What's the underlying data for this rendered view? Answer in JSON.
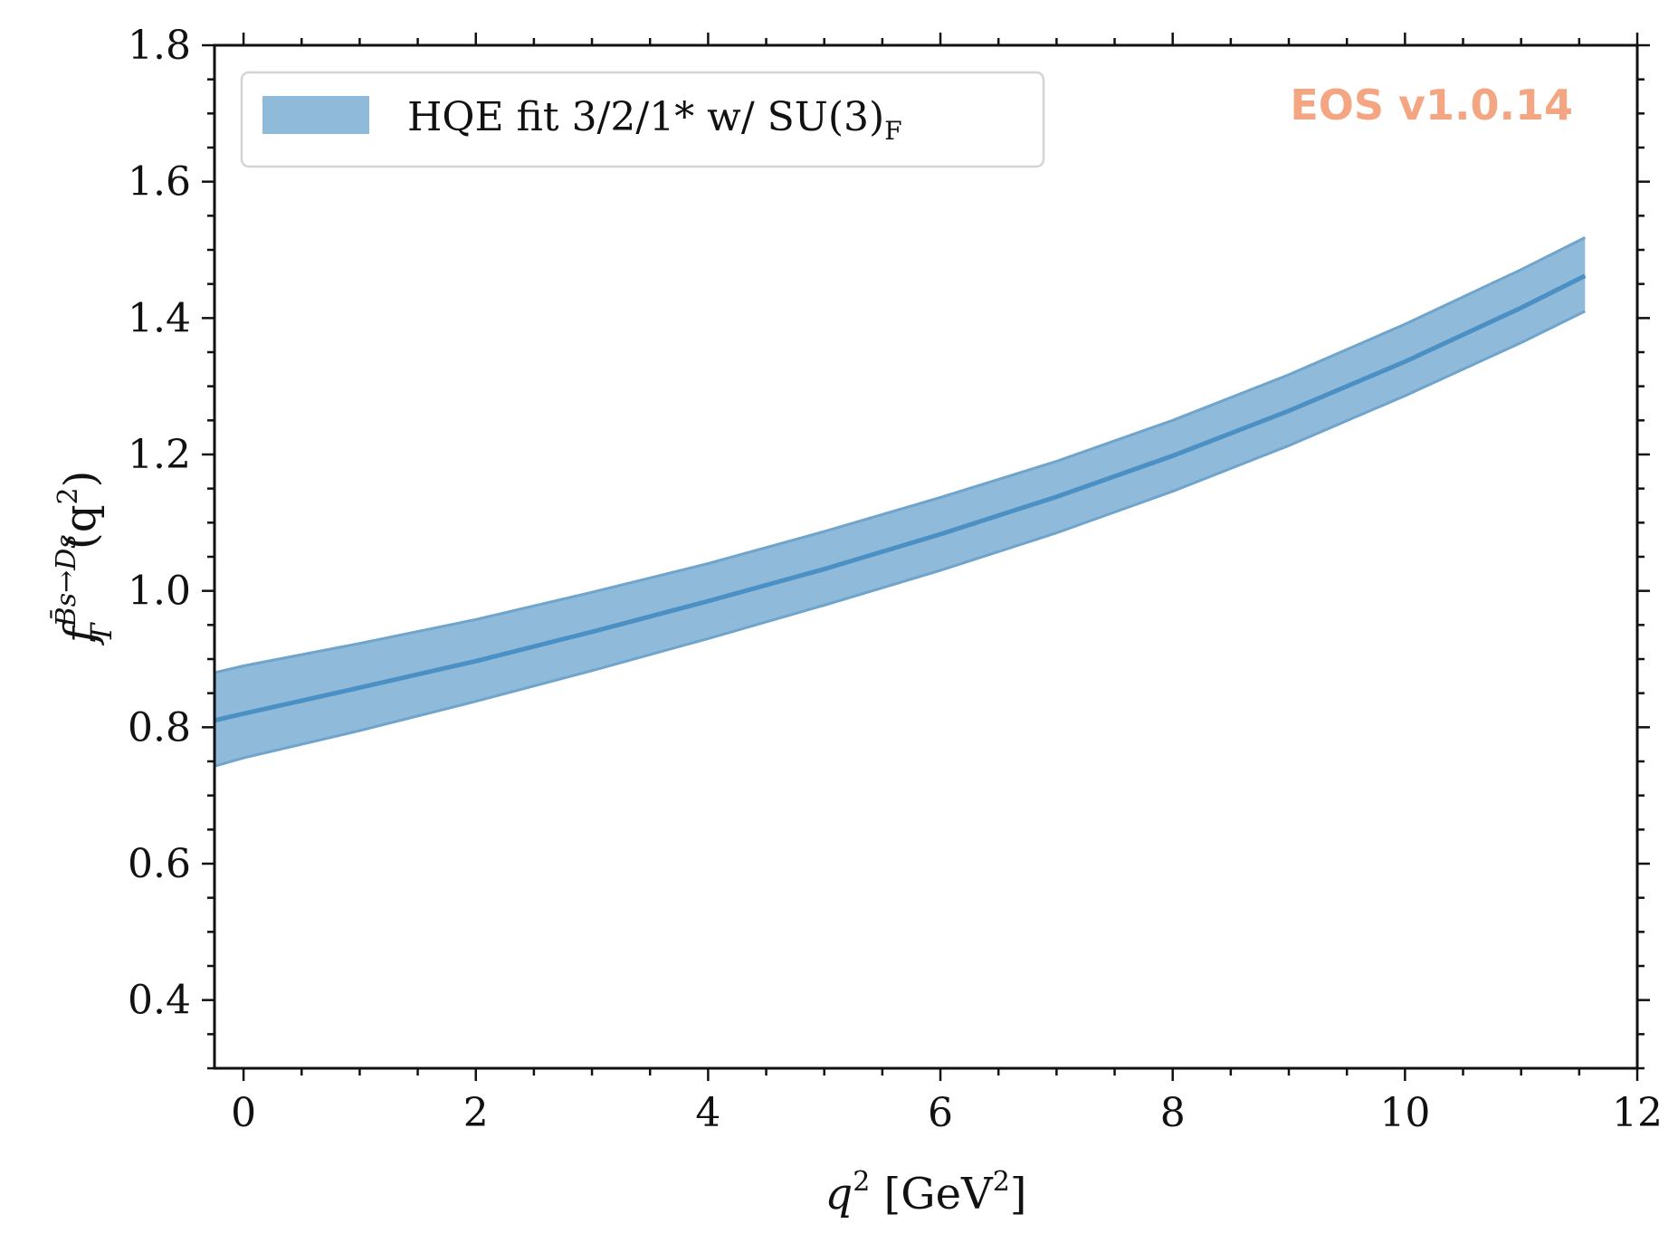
{
  "chart_data": {
    "type": "area",
    "watermark": "EOS v1.0.14",
    "xlabel": {
      "main": "q",
      "sup": "2",
      "unit_open": " [GeV",
      "unit_sup": "2",
      "unit_close": "]"
    },
    "ylabel": {
      "main": "f",
      "sub": "T",
      "sup": "B̄s→Ds",
      "arg_open": "(q",
      "arg_sup": "2",
      "arg_close": ")"
    },
    "xlim": [
      -0.25,
      12
    ],
    "ylim": [
      0.3,
      1.8
    ],
    "xticks": [
      "0",
      "2",
      "4",
      "6",
      "8",
      "10",
      "12"
    ],
    "yticks": [
      "0.4",
      "0.6",
      "0.8",
      "1.0",
      "1.2",
      "1.4",
      "1.6",
      "1.8"
    ],
    "legend": {
      "position": "upper-left",
      "entries": [
        {
          "text": "HQE fit 3/2/1* w/ SU(3)",
          "sub": "F"
        }
      ]
    },
    "colors": {
      "band_fill": "#8fbad9",
      "band_edge": "#6fa4cc",
      "central_line": "#4a90c4",
      "watermark": "#f4a582"
    },
    "series": [
      {
        "name": "HQE fit 3/2/1* w/ SU(3)F",
        "x": [
          -0.25,
          0,
          1,
          2,
          3,
          4,
          5,
          6,
          7,
          8,
          9,
          10,
          11,
          11.55
        ],
        "central": [
          0.81,
          0.82,
          0.858,
          0.897,
          0.94,
          0.985,
          1.032,
          1.083,
          1.138,
          1.198,
          1.264,
          1.336,
          1.415,
          1.462
        ],
        "upper": [
          0.88,
          0.89,
          0.923,
          0.958,
          0.998,
          1.04,
          1.087,
          1.137,
          1.19,
          1.25,
          1.317,
          1.391,
          1.471,
          1.518
        ],
        "lower": [
          0.743,
          0.755,
          0.795,
          0.838,
          0.883,
          0.93,
          0.979,
          1.03,
          1.085,
          1.146,
          1.213,
          1.286,
          1.364,
          1.41
        ]
      }
    ]
  }
}
